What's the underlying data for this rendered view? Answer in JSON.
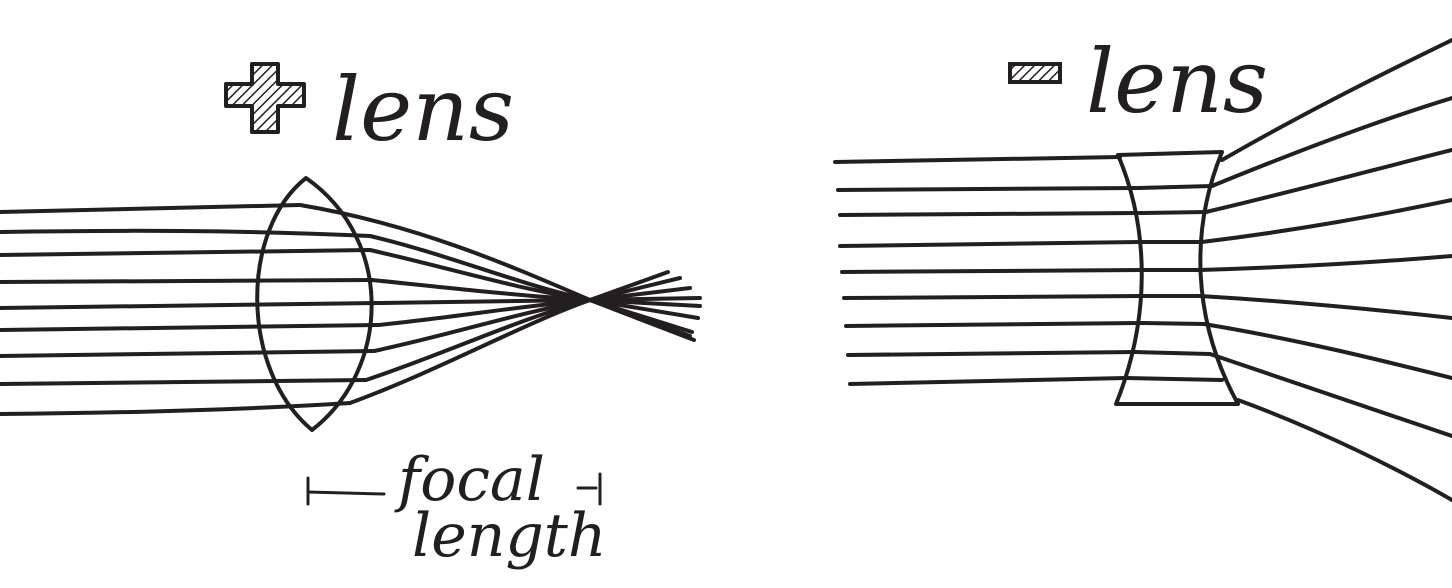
{
  "converging": {
    "sign": "+",
    "title": "lens",
    "caption_line1": "focal",
    "caption_line2": "length",
    "sign_icon": "plus-hatched-icon"
  },
  "diverging": {
    "sign": "-",
    "title": "lens",
    "sign_icon": "minus-hatched-icon"
  },
  "colors": {
    "ink": "#231f20",
    "paper": "#ffffff"
  }
}
